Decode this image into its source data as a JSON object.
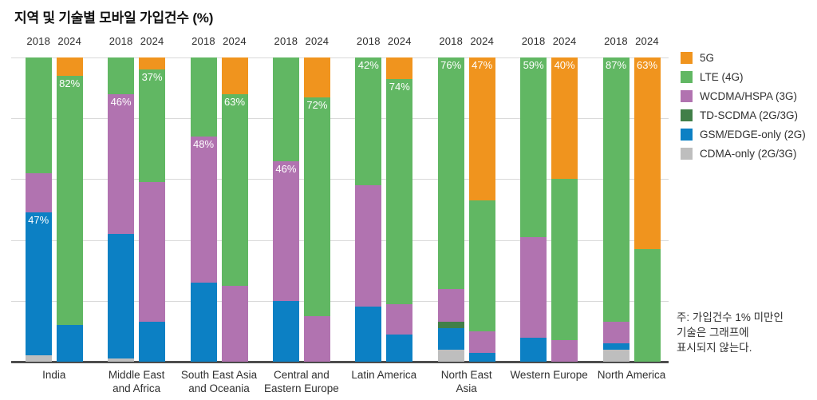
{
  "title": "지역 및 기술별 모바일 가입건수 (%)",
  "note": {
    "lines": [
      "주: 가입건수 1% 미만인",
      "기술은 그래프에",
      "표시되지 않는다."
    ]
  },
  "years": [
    "2018",
    "2024"
  ],
  "colors": {
    "5g": "#F0941E",
    "lte": "#61B763",
    "wcdma": "#B173B0",
    "tdscdma": "#417F48",
    "gsm": "#0C80C4",
    "cdma": "#BEBEBE",
    "gridline": "#D9D9D9",
    "baseline": "#4D4D4D",
    "label_text": "#FFFFFF"
  },
  "legend": [
    {
      "tech": "5g",
      "label": "5G"
    },
    {
      "tech": "lte",
      "label": "LTE (4G)"
    },
    {
      "tech": "wcdma",
      "label": "WCDMA/HSPA (3G)"
    },
    {
      "tech": "tdscdma",
      "label": "TD-SCDMA (2G/3G)"
    },
    {
      "tech": "gsm",
      "label": "GSM/EDGE-only (2G)"
    },
    {
      "tech": "cdma",
      "label": "CDMA-only (2G/3G)"
    }
  ],
  "chart_data": {
    "type": "bar",
    "stacked": true,
    "unit": "%",
    "ylim": [
      0,
      100
    ],
    "grid": true,
    "gridlines_pct": [
      20,
      40,
      60,
      80,
      100
    ],
    "legend_position": "right",
    "tech_order_bottom_to_top": [
      "cdma",
      "gsm",
      "tdscdma",
      "wcdma",
      "lte",
      "5g"
    ],
    "regions": [
      {
        "name": "India",
        "name_lines": [
          "India"
        ],
        "bars": [
          {
            "year": "2018",
            "segments": [
              {
                "tech": "cdma",
                "value": 2
              },
              {
                "tech": "gsm",
                "value": 47
              },
              {
                "tech": "wcdma",
                "value": 13
              },
              {
                "tech": "lte",
                "value": 38
              }
            ],
            "label": {
              "text": "47%",
              "tech": "gsm"
            }
          },
          {
            "year": "2024",
            "segments": [
              {
                "tech": "gsm",
                "value": 12
              },
              {
                "tech": "lte",
                "value": 82
              },
              {
                "tech": "5g",
                "value": 6
              }
            ],
            "label": {
              "text": "82%",
              "tech": "lte"
            }
          }
        ]
      },
      {
        "name": "Middle East and Africa",
        "name_lines": [
          "Middle East",
          "and Africa"
        ],
        "bars": [
          {
            "year": "2018",
            "segments": [
              {
                "tech": "cdma",
                "value": 1
              },
              {
                "tech": "gsm",
                "value": 41
              },
              {
                "tech": "wcdma",
                "value": 46
              },
              {
                "tech": "lte",
                "value": 12
              }
            ],
            "label": {
              "text": "46%",
              "tech": "wcdma"
            }
          },
          {
            "year": "2024",
            "segments": [
              {
                "tech": "gsm",
                "value": 13
              },
              {
                "tech": "wcdma",
                "value": 46
              },
              {
                "tech": "lte",
                "value": 37
              },
              {
                "tech": "5g",
                "value": 4
              }
            ],
            "label": {
              "text": "37%",
              "tech": "lte"
            }
          }
        ]
      },
      {
        "name": "South East Asia and Oceania",
        "name_lines": [
          "South East Asia",
          "and Oceania"
        ],
        "bars": [
          {
            "year": "2018",
            "segments": [
              {
                "tech": "gsm",
                "value": 26
              },
              {
                "tech": "wcdma",
                "value": 48
              },
              {
                "tech": "lte",
                "value": 26
              }
            ],
            "label": {
              "text": "48%",
              "tech": "wcdma"
            }
          },
          {
            "year": "2024",
            "segments": [
              {
                "tech": "wcdma",
                "value": 25
              },
              {
                "tech": "lte",
                "value": 63
              },
              {
                "tech": "5g",
                "value": 12
              }
            ],
            "label": {
              "text": "63%",
              "tech": "lte"
            }
          }
        ]
      },
      {
        "name": "Central and Eastern Europe",
        "name_lines": [
          "Central and",
          "Eastern Europe"
        ],
        "bars": [
          {
            "year": "2018",
            "segments": [
              {
                "tech": "gsm",
                "value": 20
              },
              {
                "tech": "wcdma",
                "value": 46
              },
              {
                "tech": "lte",
                "value": 34
              }
            ],
            "label": {
              "text": "46%",
              "tech": "wcdma"
            }
          },
          {
            "year": "2024",
            "segments": [
              {
                "tech": "wcdma",
                "value": 15
              },
              {
                "tech": "lte",
                "value": 72
              },
              {
                "tech": "5g",
                "value": 13
              }
            ],
            "label": {
              "text": "72%",
              "tech": "lte"
            }
          }
        ]
      },
      {
        "name": "Latin America",
        "name_lines": [
          "Latin America"
        ],
        "bars": [
          {
            "year": "2018",
            "segments": [
              {
                "tech": "gsm",
                "value": 18
              },
              {
                "tech": "wcdma",
                "value": 40
              },
              {
                "tech": "lte",
                "value": 42
              }
            ],
            "label": {
              "text": "42%",
              "tech": "lte"
            }
          },
          {
            "year": "2024",
            "segments": [
              {
                "tech": "gsm",
                "value": 9
              },
              {
                "tech": "wcdma",
                "value": 10
              },
              {
                "tech": "lte",
                "value": 74
              },
              {
                "tech": "5g",
                "value": 7
              }
            ],
            "label": {
              "text": "74%",
              "tech": "lte"
            }
          }
        ]
      },
      {
        "name": "North East Asia",
        "name_lines": [
          "North East",
          "Asia"
        ],
        "bars": [
          {
            "year": "2018",
            "segments": [
              {
                "tech": "cdma",
                "value": 4
              },
              {
                "tech": "gsm",
                "value": 7
              },
              {
                "tech": "tdscdma",
                "value": 2
              },
              {
                "tech": "wcdma",
                "value": 11
              },
              {
                "tech": "lte",
                "value": 76
              }
            ],
            "label": {
              "text": "76%",
              "tech": "lte"
            }
          },
          {
            "year": "2024",
            "segments": [
              {
                "tech": "gsm",
                "value": 3
              },
              {
                "tech": "wcdma",
                "value": 7
              },
              {
                "tech": "lte",
                "value": 43
              },
              {
                "tech": "5g",
                "value": 47
              }
            ],
            "label": {
              "text": "47%",
              "tech": "5g"
            }
          }
        ]
      },
      {
        "name": "Western Europe",
        "name_lines": [
          "Western Europe"
        ],
        "bars": [
          {
            "year": "2018",
            "segments": [
              {
                "tech": "gsm",
                "value": 8
              },
              {
                "tech": "wcdma",
                "value": 33
              },
              {
                "tech": "lte",
                "value": 59
              }
            ],
            "label": {
              "text": "59%",
              "tech": "lte"
            }
          },
          {
            "year": "2024",
            "segments": [
              {
                "tech": "wcdma",
                "value": 7
              },
              {
                "tech": "lte",
                "value": 53
              },
              {
                "tech": "5g",
                "value": 40
              }
            ],
            "label": {
              "text": "40%",
              "tech": "5g"
            }
          }
        ]
      },
      {
        "name": "North America",
        "name_lines": [
          "North America"
        ],
        "bars": [
          {
            "year": "2018",
            "segments": [
              {
                "tech": "cdma",
                "value": 4
              },
              {
                "tech": "gsm",
                "value": 2
              },
              {
                "tech": "wcdma",
                "value": 7
              },
              {
                "tech": "lte",
                "value": 87
              }
            ],
            "label": {
              "text": "87%",
              "tech": "lte"
            }
          },
          {
            "year": "2024",
            "segments": [
              {
                "tech": "lte",
                "value": 37
              },
              {
                "tech": "5g",
                "value": 63
              }
            ],
            "label": {
              "text": "63%",
              "tech": "5g"
            }
          }
        ]
      }
    ]
  }
}
